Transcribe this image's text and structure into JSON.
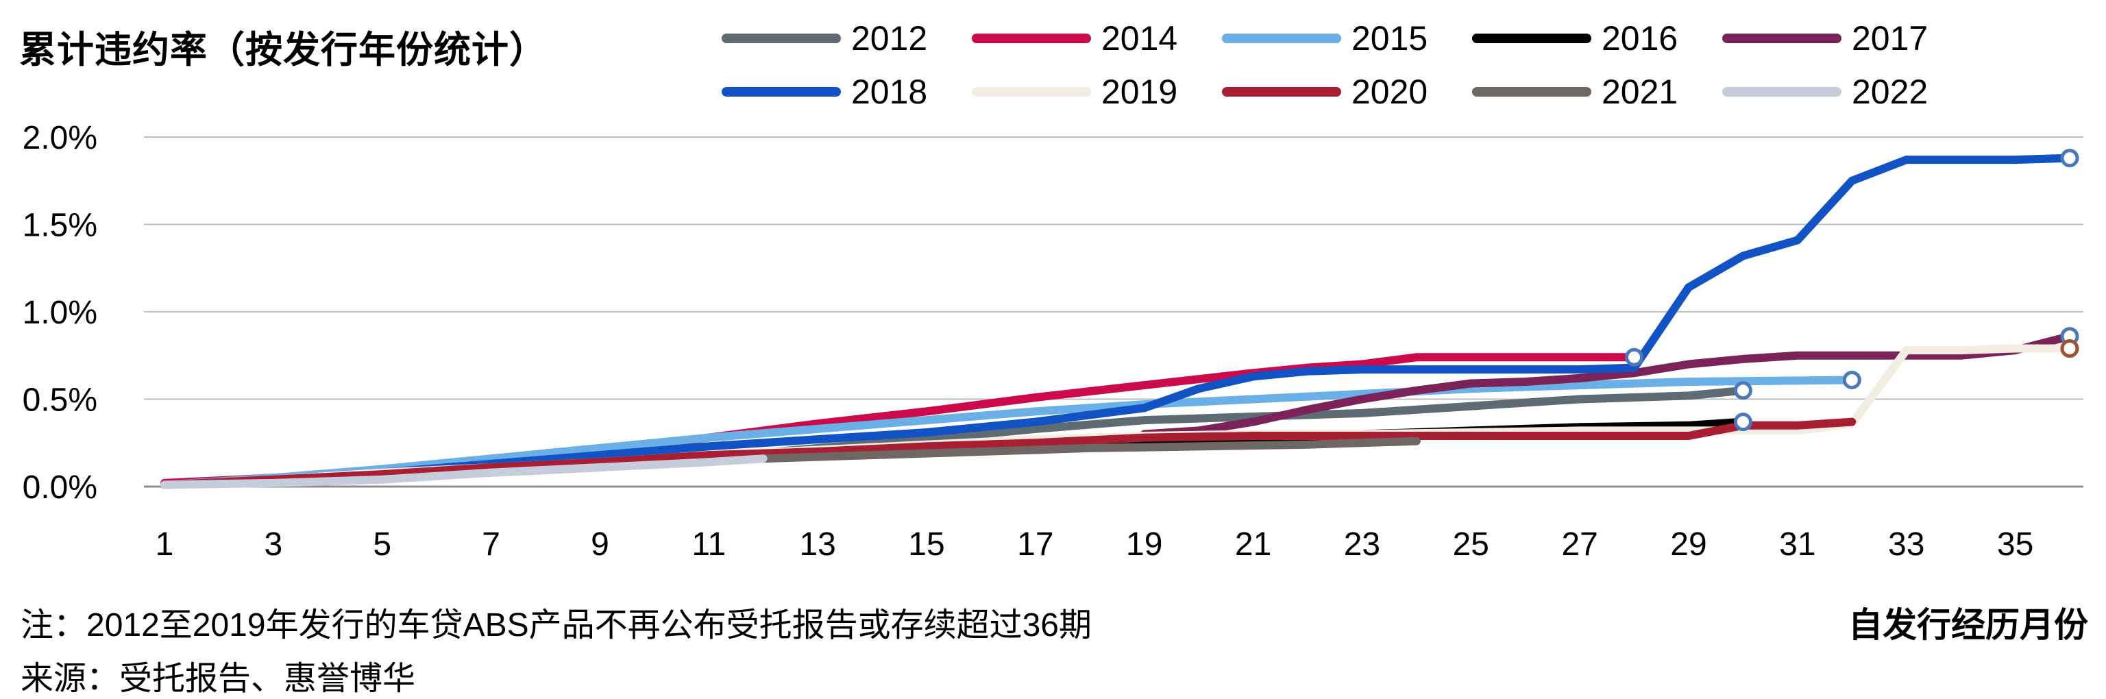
{
  "title": "累计违约率（按发行年份统计）",
  "xlabel": "自发行经历月份",
  "note": "注：2012至2019年发行的车贷ABS产品不再公布受托报告或存续超过36期",
  "source": "来源：受托报告、惠誉博华",
  "chart_data": {
    "type": "line",
    "title": "累计违约率（按发行年份统计）",
    "xlabel": "自发行经历月份",
    "ylabel": "",
    "x_range": [
      1,
      36
    ],
    "ylim": [
      0,
      2.0
    ],
    "x_ticks": [
      1,
      3,
      5,
      7,
      9,
      11,
      13,
      15,
      17,
      19,
      21,
      23,
      25,
      27,
      29,
      31,
      33,
      35
    ],
    "y_ticks": [
      0,
      0.5,
      1.0,
      1.5,
      2.0
    ],
    "y_tick_labels": [
      "0.0%",
      "0.5%",
      "1.0%",
      "1.5%",
      "2.0%"
    ],
    "y_unit": "%",
    "grid": "horizontal",
    "legend_position": "top",
    "series": [
      {
        "name": "2012",
        "color": "#5f6b73",
        "end_marker": true,
        "points": [
          [
            1,
            0.01
          ],
          [
            5,
            0.05
          ],
          [
            9,
            0.11
          ],
          [
            13,
            0.22
          ],
          [
            15,
            0.27
          ],
          [
            17,
            0.33
          ],
          [
            19,
            0.38
          ],
          [
            21,
            0.4
          ],
          [
            23,
            0.42
          ],
          [
            25,
            0.46
          ],
          [
            27,
            0.5
          ],
          [
            29,
            0.52
          ],
          [
            30,
            0.55
          ]
        ]
      },
      {
        "name": "2014",
        "color": "#cc0a4b",
        "end_marker": false,
        "points": [
          [
            1,
            0.02
          ],
          [
            3,
            0.05
          ],
          [
            5,
            0.09
          ],
          [
            7,
            0.14
          ],
          [
            9,
            0.2
          ],
          [
            11,
            0.28
          ],
          [
            13,
            0.36
          ],
          [
            15,
            0.43
          ],
          [
            17,
            0.51
          ],
          [
            19,
            0.58
          ],
          [
            21,
            0.65
          ],
          [
            22,
            0.68
          ],
          [
            23,
            0.7
          ],
          [
            24,
            0.74
          ],
          [
            25,
            0.74
          ],
          [
            26,
            0.74
          ],
          [
            27,
            0.74
          ],
          [
            28,
            0.74
          ]
        ]
      },
      {
        "name": "2015",
        "color": "#6aafe6",
        "end_marker": true,
        "points": [
          [
            1,
            0.01
          ],
          [
            3,
            0.05
          ],
          [
            5,
            0.1
          ],
          [
            7,
            0.16
          ],
          [
            9,
            0.22
          ],
          [
            11,
            0.28
          ],
          [
            13,
            0.33
          ],
          [
            15,
            0.38
          ],
          [
            17,
            0.43
          ],
          [
            19,
            0.47
          ],
          [
            21,
            0.5
          ],
          [
            23,
            0.53
          ],
          [
            25,
            0.56
          ],
          [
            27,
            0.58
          ],
          [
            29,
            0.6
          ],
          [
            32,
            0.61
          ]
        ]
      },
      {
        "name": "2016",
        "color": "#000000",
        "end_marker": true,
        "points": [
          [
            12,
            0.17
          ],
          [
            13,
            0.18
          ],
          [
            15,
            0.2
          ],
          [
            17,
            0.21
          ],
          [
            19,
            0.24
          ],
          [
            21,
            0.27
          ],
          [
            23,
            0.3
          ],
          [
            25,
            0.32
          ],
          [
            27,
            0.34
          ],
          [
            29,
            0.35
          ],
          [
            30,
            0.37
          ]
        ]
      },
      {
        "name": "2017",
        "color": "#7b2358",
        "end_marker": true,
        "points": [
          [
            19,
            0.3
          ],
          [
            20,
            0.32
          ],
          [
            21,
            0.37
          ],
          [
            22,
            0.44
          ],
          [
            23,
            0.5
          ],
          [
            24,
            0.55
          ],
          [
            25,
            0.59
          ],
          [
            26,
            0.6
          ],
          [
            27,
            0.62
          ],
          [
            28,
            0.65
          ],
          [
            29,
            0.7
          ],
          [
            30,
            0.73
          ],
          [
            31,
            0.75
          ],
          [
            32,
            0.75
          ],
          [
            33,
            0.75
          ],
          [
            34,
            0.75
          ],
          [
            35,
            0.78
          ],
          [
            36,
            0.86
          ]
        ]
      },
      {
        "name": "2018",
        "color": "#1152c5",
        "end_marker": true,
        "points": [
          [
            1,
            0.01
          ],
          [
            3,
            0.04
          ],
          [
            5,
            0.08
          ],
          [
            7,
            0.13
          ],
          [
            9,
            0.18
          ],
          [
            11,
            0.23
          ],
          [
            13,
            0.27
          ],
          [
            15,
            0.31
          ],
          [
            17,
            0.37
          ],
          [
            19,
            0.45
          ],
          [
            20,
            0.56
          ],
          [
            21,
            0.63
          ],
          [
            22,
            0.66
          ],
          [
            23,
            0.67
          ],
          [
            25,
            0.67
          ],
          [
            27,
            0.67
          ],
          [
            28,
            0.68
          ],
          [
            29,
            1.14
          ],
          [
            30,
            1.32
          ],
          [
            31,
            1.41
          ],
          [
            32,
            1.75
          ],
          [
            33,
            1.87
          ],
          [
            35,
            1.87
          ],
          [
            36,
            1.88
          ]
        ]
      },
      {
        "name": "2019",
        "color": "#f3ece0",
        "end_marker": false,
        "points": [
          [
            1,
            0.01
          ],
          [
            3,
            0.04
          ],
          [
            5,
            0.08
          ],
          [
            7,
            0.11
          ],
          [
            9,
            0.14
          ],
          [
            11,
            0.18
          ],
          [
            13,
            0.21
          ],
          [
            15,
            0.24
          ],
          [
            17,
            0.27
          ],
          [
            19,
            0.29
          ],
          [
            21,
            0.3
          ],
          [
            23,
            0.3
          ],
          [
            25,
            0.31
          ],
          [
            27,
            0.32
          ],
          [
            29,
            0.32
          ],
          [
            31,
            0.32
          ],
          [
            32,
            0.36
          ],
          [
            33,
            0.78
          ],
          [
            34,
            0.78
          ],
          [
            35,
            0.79
          ],
          [
            36,
            0.79
          ]
        ]
      },
      {
        "name": "2020",
        "color": "#a81f34",
        "end_marker": false,
        "points": [
          [
            1,
            0.01
          ],
          [
            3,
            0.04
          ],
          [
            5,
            0.07
          ],
          [
            7,
            0.11
          ],
          [
            9,
            0.14
          ],
          [
            11,
            0.18
          ],
          [
            13,
            0.2
          ],
          [
            15,
            0.23
          ],
          [
            17,
            0.25
          ],
          [
            19,
            0.28
          ],
          [
            21,
            0.29
          ],
          [
            23,
            0.29
          ],
          [
            25,
            0.29
          ],
          [
            27,
            0.29
          ],
          [
            29,
            0.29
          ],
          [
            30,
            0.35
          ],
          [
            31,
            0.35
          ],
          [
            32,
            0.37
          ]
        ]
      },
      {
        "name": "2021",
        "color": "#6e6763",
        "end_marker": false,
        "points": [
          [
            12,
            0.16
          ],
          [
            14,
            0.18
          ],
          [
            16,
            0.2
          ],
          [
            18,
            0.22
          ],
          [
            20,
            0.23
          ],
          [
            22,
            0.24
          ],
          [
            24,
            0.26
          ]
        ]
      },
      {
        "name": "2022",
        "color": "#c6ccdb",
        "end_marker": false,
        "points": [
          [
            1,
            0.01
          ],
          [
            3,
            0.02
          ],
          [
            5,
            0.04
          ],
          [
            7,
            0.08
          ],
          [
            9,
            0.11
          ],
          [
            11,
            0.14
          ],
          [
            12,
            0.16
          ]
        ]
      }
    ],
    "end_markers": [
      {
        "series": "2014",
        "x": 28,
        "y": 0.74,
        "color": "#4a78b8"
      },
      {
        "series": "2015",
        "x": 32,
        "y": 0.61,
        "color": "#4a78b8"
      },
      {
        "series": "2012",
        "x": 30,
        "y": 0.55,
        "color": "#4a78b8"
      },
      {
        "series": "2016",
        "x": 30,
        "y": 0.37,
        "color": "#4a78b8"
      },
      {
        "series": "2018",
        "x": 36,
        "y": 1.88,
        "color": "#4a78b8"
      },
      {
        "series": "2017",
        "x": 36,
        "y": 0.86,
        "color": "#4a78b8"
      },
      {
        "series": "2019",
        "x": 36,
        "y": 0.79,
        "color": "#a0522d"
      }
    ]
  }
}
